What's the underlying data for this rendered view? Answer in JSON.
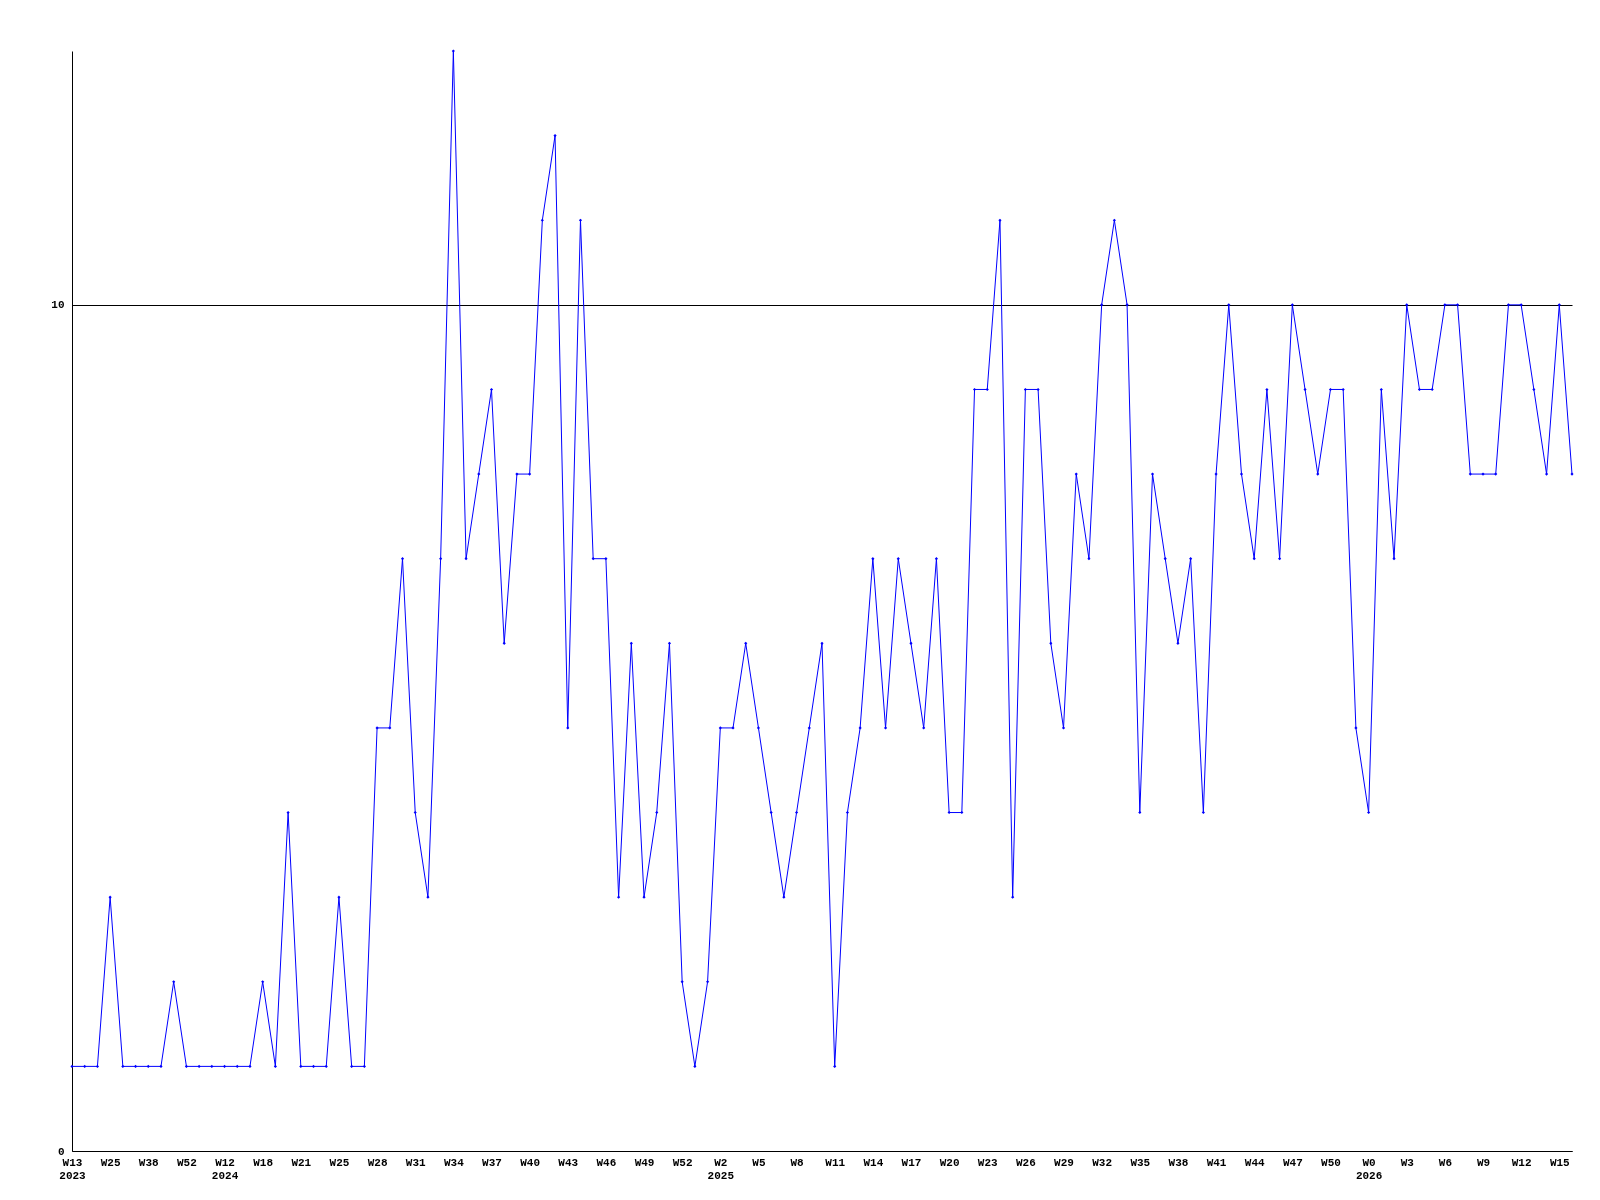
{
  "chart_data": {
    "type": "line",
    "categories": [
      "W13\n2023",
      null,
      null,
      "W25",
      null,
      null,
      "W38",
      null,
      null,
      "W52",
      null,
      null,
      "W12\n2024",
      null,
      null,
      "W18",
      null,
      null,
      "W21",
      null,
      null,
      "W25",
      null,
      null,
      "W28",
      null,
      null,
      "W31",
      null,
      null,
      "W34",
      null,
      null,
      "W37",
      null,
      null,
      "W40",
      null,
      null,
      "W43",
      null,
      null,
      "W46",
      null,
      null,
      "W49",
      null,
      null,
      "W52",
      null,
      null,
      "W2\n2025",
      null,
      null,
      "W5",
      null,
      null,
      "W8",
      null,
      null,
      "W11",
      null,
      null,
      "W14",
      null,
      null,
      "W17",
      null,
      null,
      "W20",
      null,
      null,
      "W23",
      null,
      null,
      "W26",
      null,
      null,
      "W29",
      null,
      null,
      "W32",
      null,
      null,
      "W35",
      null,
      null,
      "W38",
      null,
      null,
      "W41",
      null,
      null,
      "W44",
      null,
      null,
      "W47",
      null,
      null,
      "W50",
      null,
      null,
      "W0\n2026",
      null,
      null,
      "W3",
      null,
      null,
      "W6",
      null,
      null,
      "W9",
      null,
      null,
      "W12",
      null,
      null,
      "W15",
      null
    ],
    "series": [
      {
        "color": "#0000ff",
        "values": [
          1,
          1,
          1,
          3,
          1,
          1,
          1,
          1,
          2,
          1,
          1,
          1,
          1,
          1,
          1,
          2,
          1,
          4,
          1,
          1,
          1,
          3,
          1,
          1,
          5,
          5,
          7,
          4,
          3,
          7,
          13,
          7,
          8,
          9,
          6,
          8,
          8,
          11,
          12,
          5,
          11,
          7,
          7,
          3,
          6,
          3,
          4,
          6,
          2,
          1,
          2,
          5,
          5,
          6,
          5,
          4,
          3,
          4,
          5,
          6,
          1,
          4,
          5,
          7,
          5,
          7,
          6,
          5,
          7,
          4,
          4,
          9,
          9,
          11,
          3,
          9,
          9,
          6,
          5,
          8,
          7,
          10,
          11,
          10,
          4,
          8,
          7,
          6,
          7,
          4,
          8,
          10,
          8,
          7,
          9,
          7,
          10,
          9,
          8,
          9,
          9,
          5,
          4,
          9,
          7,
          10,
          9,
          9,
          10,
          10,
          8,
          8,
          8,
          10,
          10,
          9,
          8,
          10,
          8
        ]
      }
    ],
    "ylim": [
      0,
      13
    ],
    "yticks": [
      0,
      10
    ],
    "grid": "y",
    "marker": "diamond",
    "line_style": "solid",
    "legend": false
  }
}
